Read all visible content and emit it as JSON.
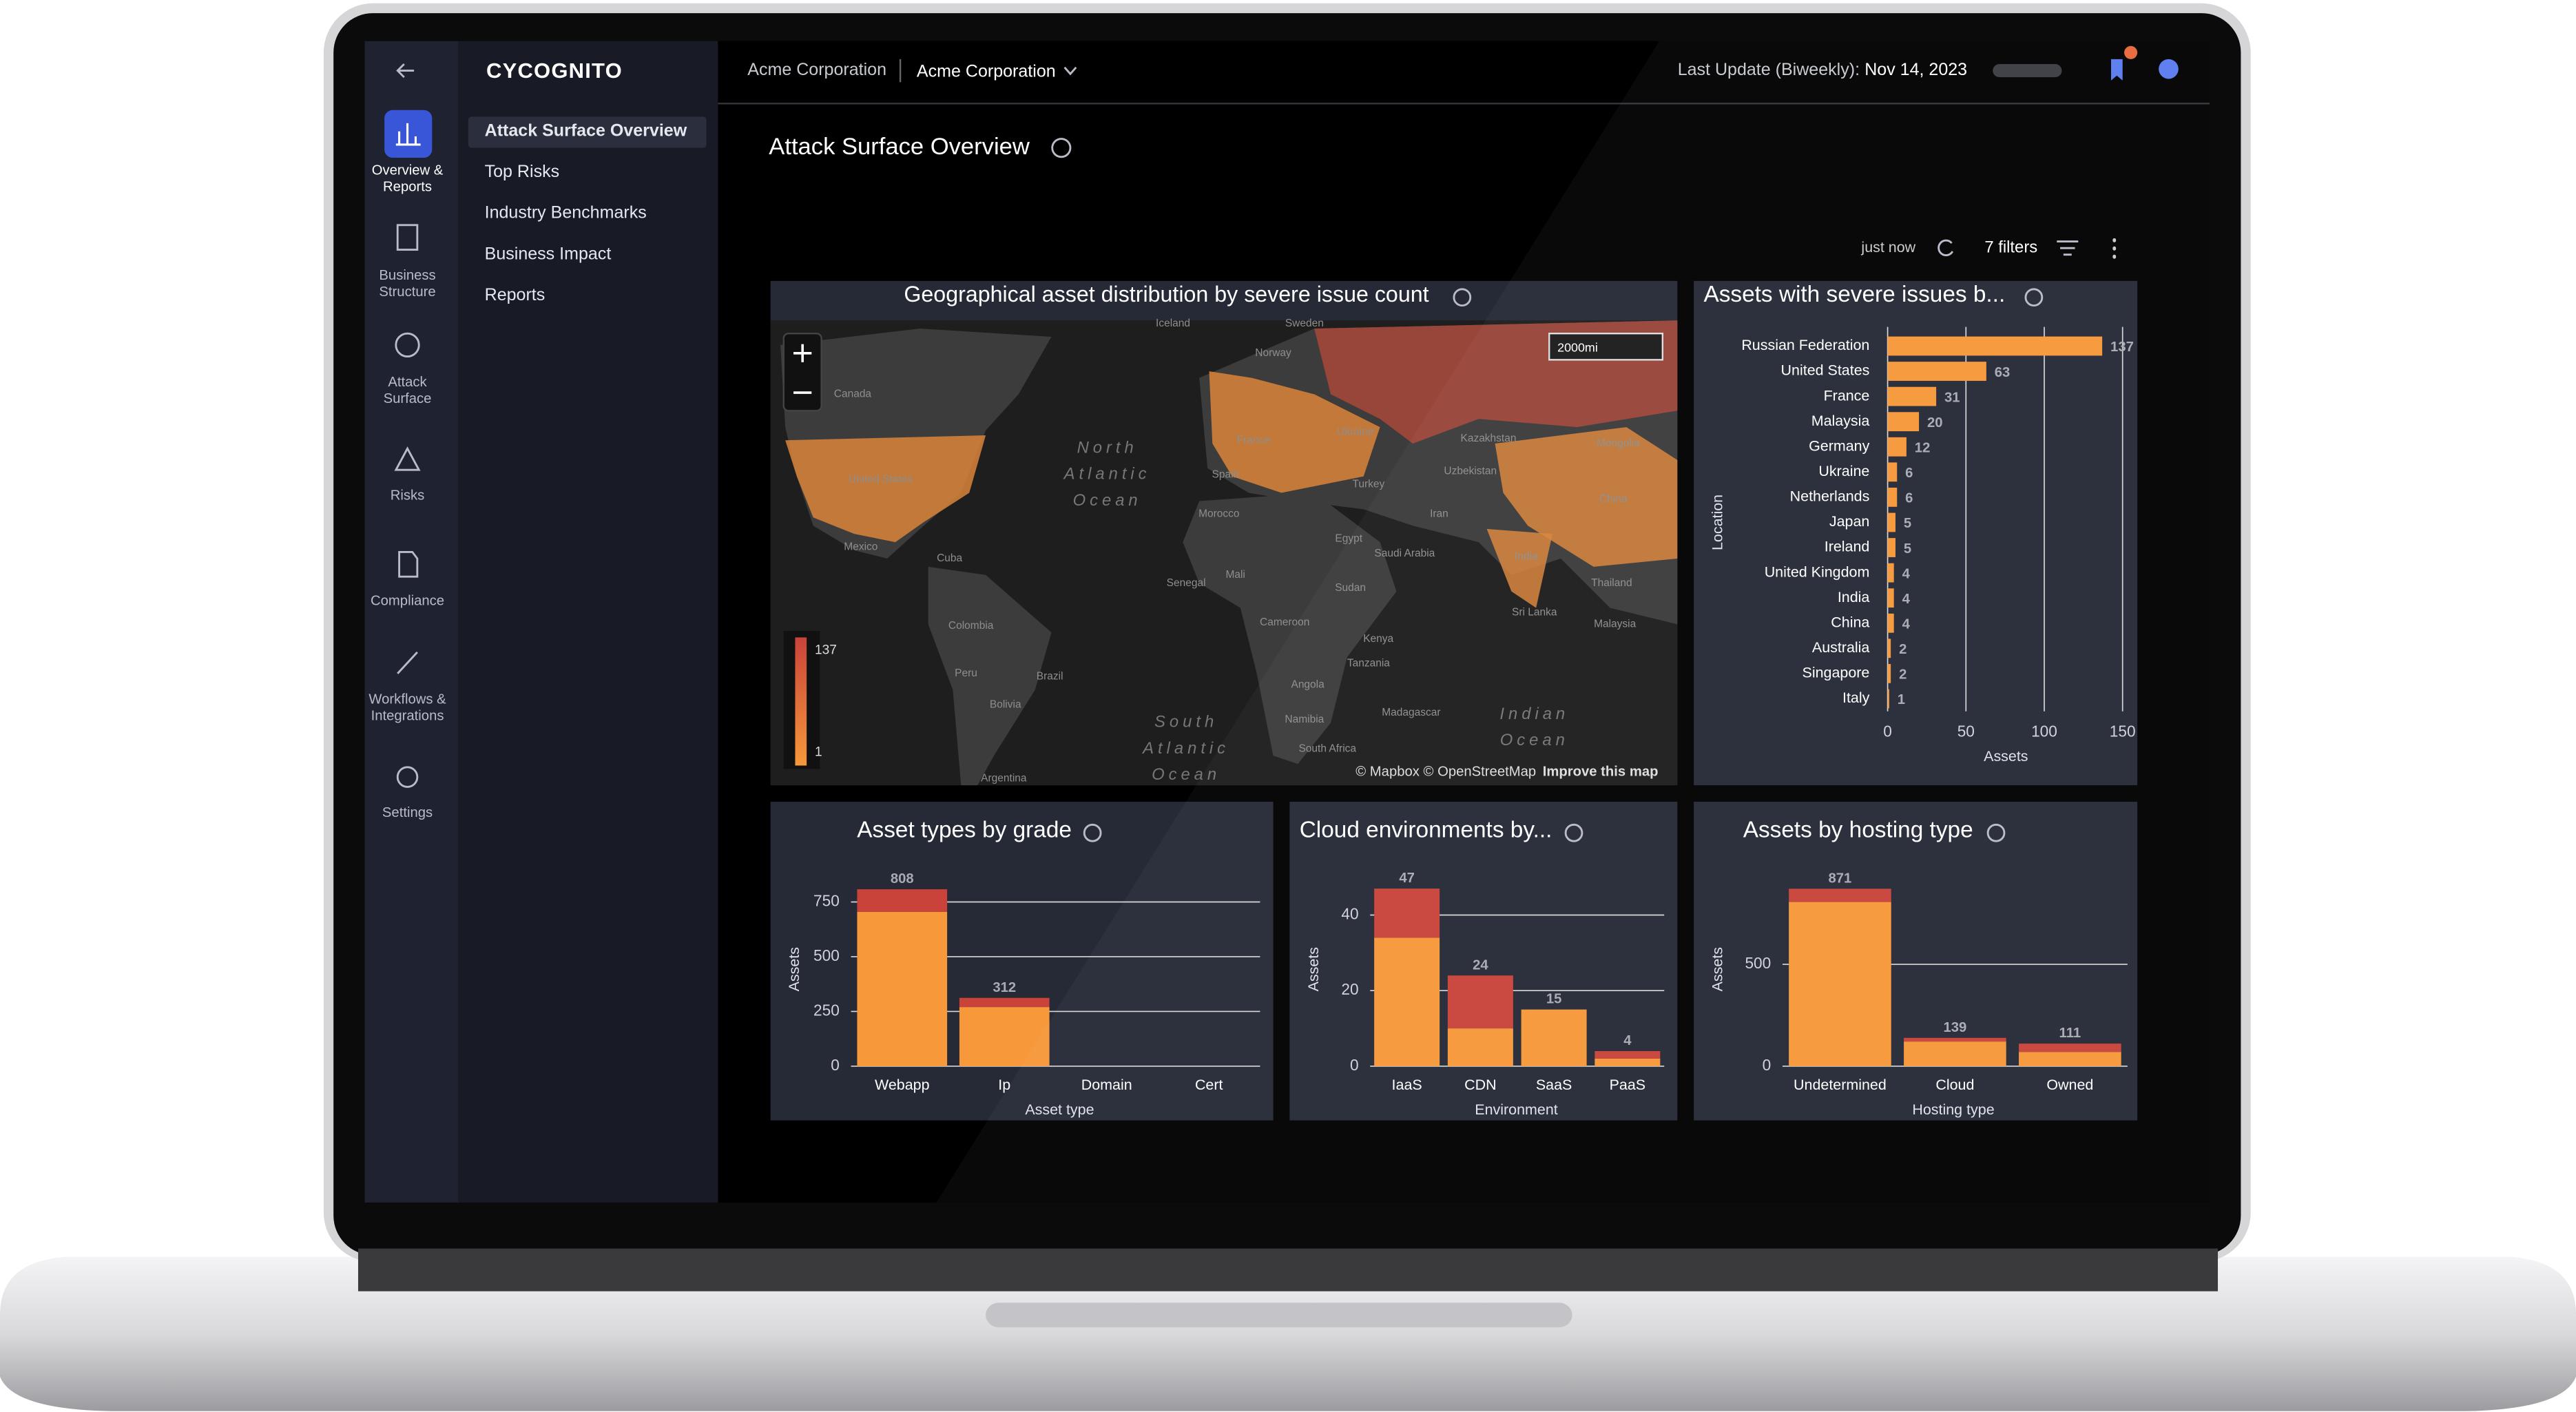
{
  "logo": "CYCOGNITO",
  "nav_rail": {
    "items": [
      [
        "Overview &",
        "Reports"
      ],
      [
        "Business",
        "Structure"
      ],
      [
        "Attack",
        "Surface"
      ],
      [
        "Risks"
      ],
      [
        "Compliance"
      ],
      [
        "Workflows &",
        "Integrations"
      ],
      [
        "Settings"
      ]
    ]
  },
  "submenu": {
    "items": [
      "Attack Surface Overview",
      "Top Risks",
      "Industry Benchmarks",
      "Business Impact",
      "Reports"
    ]
  },
  "header": {
    "org": "Acme Corporation",
    "org_select": "Acme Corporation",
    "last_update_label": "Last Update (Biweekly):",
    "last_update_date": "Nov 14, 2023"
  },
  "page_title": "Attack Surface Overview",
  "toolbar": {
    "refreshed": "just now",
    "filters": "7 filters"
  },
  "map": {
    "title": "Geographical asset distribution by severe issue count",
    "scale_label": "2000mi",
    "legend_ticks": [
      137,
      1
    ],
    "attribution": "© Mapbox © OpenStreetMap",
    "improve_link": "Improve this map",
    "labels": [
      "Iceland",
      "Sweden",
      "Norway",
      "Canada",
      "United States",
      "Mexico",
      "Cuba",
      "Colombia",
      "Peru",
      "Brazil",
      "Bolivia",
      "Argentina",
      "Spain",
      "France",
      "Ukraine",
      "Turkey",
      "Morocco",
      "Egypt",
      "Saudi Arabia",
      "Iran",
      "Uzbekistan",
      "Kazakhstan",
      "Mongolia",
      "China",
      "India",
      "Senegal",
      "Mali",
      "Sudan",
      "Cameroon",
      "Kenya",
      "Tanzania",
      "Angola",
      "Namibia",
      "South Africa",
      "Madagascar",
      "Thailand",
      "Sri Lanka",
      "Malaysia"
    ],
    "ocean_labels": [
      [
        "North",
        "Atlantic",
        "Ocean"
      ],
      [
        "South",
        "Atlantic",
        "Ocean"
      ],
      [
        "Indian",
        "Ocean"
      ]
    ]
  },
  "chart_data": [
    {
      "type": "hbar",
      "title": "Assets with severe issues b...",
      "categories": [
        "Russian Federation",
        "United States",
        "France",
        "Malaysia",
        "Germany",
        "Ukraine",
        "Netherlands",
        "Japan",
        "Ireland",
        "United Kingdom",
        "India",
        "China",
        "Australia",
        "Singapore",
        "Italy"
      ],
      "values": [
        137,
        63,
        31,
        20,
        12,
        6,
        6,
        5,
        5,
        4,
        4,
        4,
        2,
        2,
        1
      ],
      "color": "#f7983a",
      "xlim": [
        0,
        150
      ],
      "xticks": [
        0,
        50,
        100,
        150
      ],
      "xlabel": "Assets",
      "ylabel": "Location",
      "grid": true
    },
    {
      "type": "stacked_bar",
      "title": "Asset types by grade",
      "categories": [
        "Webapp",
        "Ip",
        "Domain",
        "Cert"
      ],
      "series": [
        {
          "color": "#f7983a",
          "values": [
            705,
            270,
            0,
            0
          ]
        },
        {
          "color": "#c9433a",
          "values": [
            103,
            42,
            0,
            0
          ]
        }
      ],
      "totals": [
        808,
        312,
        null,
        null
      ],
      "ylim": [
        0,
        850
      ],
      "yticks": [
        0,
        250,
        500,
        750
      ],
      "xlabel": "Asset type",
      "ylabel": "Assets",
      "grid": true
    },
    {
      "type": "stacked_bar",
      "title": "Cloud environments by...",
      "categories": [
        "IaaS",
        "CDN",
        "SaaS",
        "PaaS"
      ],
      "series": [
        {
          "color": "#f7983a",
          "values": [
            34,
            10,
            15,
            2
          ]
        },
        {
          "color": "#c9433a",
          "values": [
            13,
            14,
            0,
            2
          ]
        }
      ],
      "totals": [
        47,
        24,
        15,
        4
      ],
      "ylim": [
        0,
        50
      ],
      "yticks": [
        0,
        20,
        40
      ],
      "xlabel": "Environment",
      "ylabel": "Assets",
      "grid": true
    },
    {
      "type": "stacked_bar",
      "title": "Assets by hosting type",
      "categories": [
        "Undetermined",
        "Cloud",
        "Owned"
      ],
      "series": [
        {
          "color": "#f7983a",
          "values": [
            806,
            121,
            70
          ]
        },
        {
          "color": "#c9433a",
          "values": [
            65,
            18,
            41
          ]
        }
      ],
      "totals": [
        871,
        139,
        111
      ],
      "ylim": [
        0,
        900
      ],
      "yticks": [
        0,
        500
      ],
      "xlabel": "Hosting type",
      "ylabel": "Assets",
      "grid": true
    }
  ]
}
